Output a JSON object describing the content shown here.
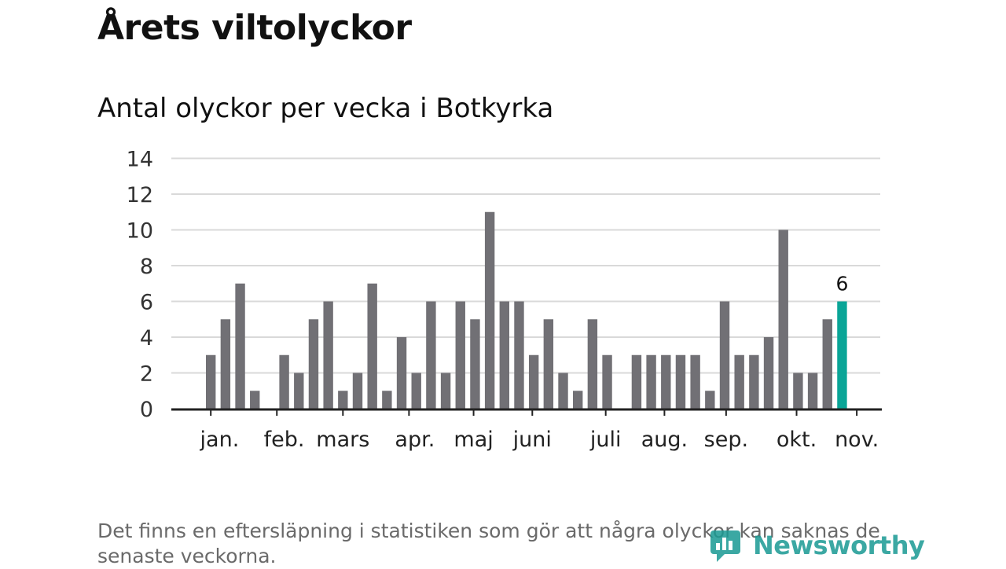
{
  "title": "Årets viltolyckor",
  "subtitle": "Antal olyckor per vecka i Botkyrka",
  "footnote": "Det finns en eftersläpning i statistiken som gör att några olyckor kan saknas de senaste veckorna.",
  "logo": {
    "text": "Newsworthy",
    "icon": "newsworthy-logo-icon",
    "color": "#1a9a93"
  },
  "colors": {
    "bar": "#717075",
    "highlight": "#0aa597",
    "grid": "#d9d9d9",
    "axis": "#222222"
  },
  "chart_data": {
    "type": "bar",
    "title": "Antal olyckor per vecka i Botkyrka",
    "xlabel": "",
    "ylabel": "",
    "ylim": [
      0,
      14
    ],
    "yticks": [
      0,
      2,
      4,
      6,
      8,
      10,
      12,
      14
    ],
    "grid": true,
    "legend": "none",
    "weeks": [
      1,
      2,
      3,
      4,
      5,
      6,
      7,
      8,
      9,
      10,
      11,
      12,
      13,
      14,
      15,
      16,
      17,
      18,
      19,
      20,
      21,
      22,
      23,
      24,
      25,
      26,
      27,
      28,
      29,
      30,
      31,
      32,
      33,
      34,
      35,
      36,
      37,
      38,
      39,
      40,
      41,
      42,
      43,
      44,
      45,
      46
    ],
    "values": [
      0,
      0,
      3,
      5,
      7,
      1,
      0,
      3,
      2,
      5,
      6,
      1,
      2,
      7,
      1,
      4,
      2,
      6,
      2,
      6,
      5,
      11,
      6,
      6,
      3,
      5,
      2,
      1,
      5,
      3,
      0,
      3,
      3,
      3,
      3,
      3,
      1,
      6,
      3,
      3,
      4,
      10,
      2,
      2,
      5,
      6
    ],
    "highlight_index": 45,
    "highlight_label": "6",
    "month_labels": [
      {
        "label": "jan.",
        "week": 3.6
      },
      {
        "label": "feb.",
        "week": 8.0
      },
      {
        "label": "mars",
        "week": 12.0
      },
      {
        "label": "apr.",
        "week": 16.9
      },
      {
        "label": "maj",
        "week": 20.9
      },
      {
        "label": "juni",
        "week": 24.9
      },
      {
        "label": "juli",
        "week": 29.9
      },
      {
        "label": "aug.",
        "week": 33.9
      },
      {
        "label": "sep.",
        "week": 38.1
      },
      {
        "label": "okt.",
        "week": 42.9
      },
      {
        "label": "nov.",
        "week": 47.0
      }
    ],
    "month_ticks": [
      3.0,
      7.5,
      12.0,
      16.5,
      20.9,
      24.9,
      29.9,
      33.9,
      38.1,
      42.9,
      47.0
    ]
  }
}
